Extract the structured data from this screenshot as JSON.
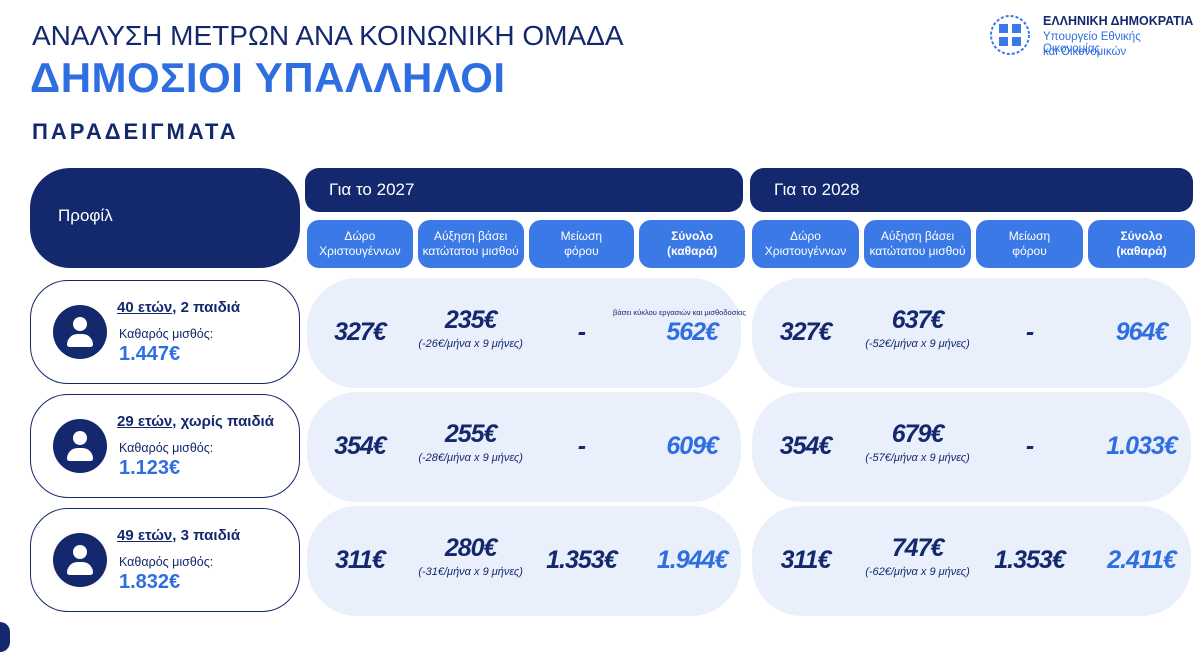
{
  "header": {
    "title": "ΑΝΑΛΥΣΗ ΜΕΤΡΩΝ ΑΝΑ ΚΟΙΝΩΝΙΚΗ ΟΜΑΔΑ",
    "subtitle": "ΔΗΜΟΣΙΟΙ ΥΠΑΛΛΗΛΟΙ",
    "section": "ΠΑΡΑΔΕΙΓΜΑΤΑ"
  },
  "logo": {
    "line1": "ΕΛΛΗΝΙΚΗ ΔΗΜΟΚΡΑΤΙΑ",
    "line2": "Υπουργείο Εθνικής Οικονομίας",
    "line3": "και Οικονομικών"
  },
  "table": {
    "profile_header": "Προφίλ",
    "note": "βάσει κύκλου εργασιών και μισθοδοσίας",
    "periods": [
      {
        "title": "Για το 2027",
        "columns": [
          [
            "Δώρο",
            "Χριστουγέννων"
          ],
          [
            "Αύξηση βάσει",
            "κατώτατου μισθού"
          ],
          [
            "Μείωση",
            "φόρου"
          ],
          [
            "Σύνολο",
            "(καθαρά)"
          ]
        ]
      },
      {
        "title": "Για το 2028",
        "columns": [
          [
            "Δώρο",
            "Χριστουγέννων"
          ],
          [
            "Αύξηση βάσει",
            "κατώτατου μισθού"
          ],
          [
            "Μείωση",
            "φόρου"
          ],
          [
            "Σύνολο",
            "(καθαρά)"
          ]
        ]
      }
    ],
    "rows": [
      {
        "age": "40 ετών",
        "family": ", 2 παιδιά",
        "salary_label": "Καθαρός μισθός:",
        "salary": "1.447€",
        "periods": [
          {
            "bonus": "327€",
            "raise": "235€",
            "raise_detail": "(-26€/μήνα x 9 μήνες)",
            "tax": "-",
            "total": "562€"
          },
          {
            "bonus": "327€",
            "raise": "637€",
            "raise_detail": "(-52€/μήνα x 9 μήνες)",
            "tax": "-",
            "total": "964€"
          }
        ]
      },
      {
        "age": "29 ετών",
        "family": ", χωρίς παιδιά",
        "salary_label": "Καθαρός μισθός:",
        "salary": "1.123€",
        "periods": [
          {
            "bonus": "354€",
            "raise": "255€",
            "raise_detail": "(-28€/μήνα x 9 μήνες)",
            "tax": "-",
            "total": "609€"
          },
          {
            "bonus": "354€",
            "raise": "679€",
            "raise_detail": "(-57€/μήνα x 9 μήνες)",
            "tax": "-",
            "total": "1.033€"
          }
        ]
      },
      {
        "age": "49 ετών",
        "family": ", 3 παιδιά",
        "salary_label": "Καθαρός μισθός:",
        "salary": "1.832€",
        "periods": [
          {
            "bonus": "311€",
            "raise": "280€",
            "raise_detail": "(-31€/μήνα x 9 μήνες)",
            "tax": "1.353€",
            "total": "1.944€"
          },
          {
            "bonus": "311€",
            "raise": "747€",
            "raise_detail": "(-62€/μήνα x 9 μήνες)",
            "tax": "1.353€",
            "total": "2.411€"
          }
        ]
      }
    ]
  }
}
